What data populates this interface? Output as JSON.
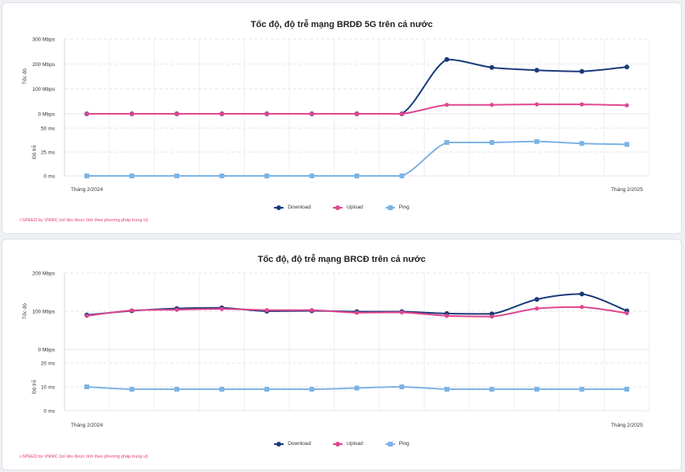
{
  "charts": [
    {
      "title": "Tốc độ, độ trễ mạng BRDĐ 5G trên cả nước",
      "source": "i-SPEED by VNNIC (số liệu được tính theo phương pháp trung vị)",
      "x_first_label": "Tháng 2/2024",
      "x_last_label": "Tháng 2/2025",
      "speed_axis_label": "Tốc độ",
      "ping_axis_label": "Độ trễ"
    },
    {
      "title": "Tốc độ, độ trễ mạng BRCĐ trên cả nước",
      "source": "i-SPEED by VNNIC (số liệu được tính theo phương pháp trung vị)",
      "x_first_label": "Tháng 2/2024",
      "x_last_label": "Tháng 2/2025",
      "speed_axis_label": "Tốc độ",
      "ping_axis_label": "Độ trễ"
    }
  ],
  "legend": [
    "Download",
    "Upload",
    "Ping"
  ],
  "colors": {
    "download": "#1b3a7a",
    "upload": "#e0468f",
    "ping": "#7db3e3"
  },
  "chart_data": [
    {
      "type": "line",
      "title": "Tốc độ, độ trễ mạng BRDĐ 5G trên cả nước",
      "x_range": [
        "Tháng 2/2024",
        "Tháng 2/2025"
      ],
      "speed_ticks": [
        "0 Mbps",
        "100 Mbps",
        "200 Mbps",
        "300 Mbps"
      ],
      "speed_ylim": [
        0,
        300
      ],
      "ping_ticks": [
        "0 ms",
        "25 ms",
        "50 ms"
      ],
      "ping_ylim": [
        0,
        50
      ],
      "series": [
        {
          "name": "Download",
          "unit": "Mbps",
          "values": [
            0,
            0,
            0,
            0,
            0,
            0,
            0,
            0,
            218,
            186,
            175,
            170,
            188
          ]
        },
        {
          "name": "Upload",
          "unit": "Mbps",
          "values": [
            0,
            0,
            0,
            0,
            0,
            0,
            0,
            0,
            36,
            36,
            38,
            38,
            34
          ]
        },
        {
          "name": "Ping",
          "unit": "ms",
          "values": [
            0,
            0,
            0,
            0,
            0,
            0,
            0,
            0,
            35,
            35,
            36,
            34,
            33
          ]
        }
      ]
    },
    {
      "type": "line",
      "title": "Tốc độ, độ trễ mạng BRCĐ trên cả nước",
      "x_range": [
        "Tháng 2/2024",
        "Tháng 2/2025"
      ],
      "speed_ticks": [
        "0 Mbps",
        "100 Mbps",
        "200 Mbps"
      ],
      "speed_ylim": [
        0,
        200
      ],
      "ping_ticks": [
        "0 ms",
        "10 ms",
        "20 ms"
      ],
      "ping_ylim": [
        0,
        20
      ],
      "series": [
        {
          "name": "Download",
          "unit": "Mbps",
          "values": [
            90,
            101,
            107,
            109,
            100,
            101,
            99,
            99,
            94,
            93,
            131,
            145,
            101
          ]
        },
        {
          "name": "Upload",
          "unit": "Mbps",
          "values": [
            88,
            102,
            104,
            106,
            103,
            103,
            96,
            97,
            88,
            86,
            107,
            111,
            95
          ]
        },
        {
          "name": "Ping",
          "unit": "ms",
          "values": [
            10,
            9,
            9,
            9,
            9,
            9,
            9.5,
            10,
            9,
            9,
            9,
            9,
            9
          ]
        }
      ]
    }
  ]
}
